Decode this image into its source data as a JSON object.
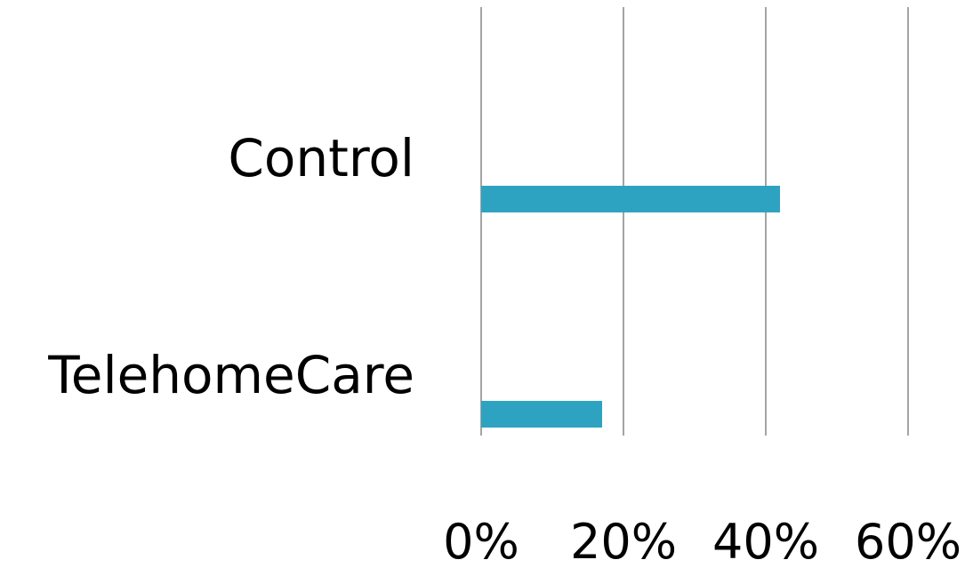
{
  "chart_data": {
    "type": "bar",
    "orientation": "horizontal",
    "categories": [
      "Control",
      "TelehomeCare"
    ],
    "series": [
      {
        "values": [
          42,
          17
        ],
        "color": "#2ea3c1"
      }
    ],
    "xlim": [
      0,
      60
    ],
    "x_ticks": [
      0,
      20,
      40,
      60
    ],
    "x_tick_labels": [
      "0%",
      "20%",
      "40%",
      "60%"
    ],
    "unit": "%",
    "grid": true,
    "legend": "none"
  }
}
